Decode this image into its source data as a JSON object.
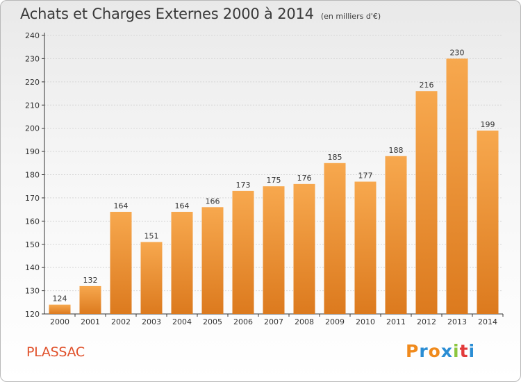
{
  "title": "Achats et Charges Externes 2000 à 2014",
  "unit": "(en milliers d'€)",
  "commune": "PLASSAC",
  "logo": {
    "letters": [
      "P",
      "r",
      "o",
      "x",
      "i",
      "t",
      "i"
    ],
    "colors": [
      "#f08a1c",
      "#2a8dd4",
      "#f08a1c",
      "#2a8dd4",
      "#8cc63e",
      "#e23b3b",
      "#2a8dd4"
    ]
  },
  "colors": {
    "bar_top": "#f7a84e",
    "bar_bottom": "#dc7a1e",
    "title": "#3a3a3a",
    "commune": "#e0502a"
  },
  "chart_data": {
    "type": "bar",
    "categories": [
      "2000",
      "2001",
      "2002",
      "2003",
      "2004",
      "2005",
      "2006",
      "2007",
      "2008",
      "2009",
      "2010",
      "2011",
      "2012",
      "2013",
      "2014"
    ],
    "values": [
      124,
      132,
      164,
      151,
      164,
      166,
      173,
      175,
      176,
      185,
      177,
      188,
      216,
      230,
      199
    ],
    "title": "Achats et Charges Externes 2000 à 2014",
    "xlabel": "",
    "ylabel": "",
    "ylim": [
      120,
      240
    ],
    "yticks": [
      120,
      130,
      140,
      150,
      160,
      170,
      180,
      190,
      200,
      210,
      220,
      230,
      240
    ],
    "grid": true,
    "legend": "none"
  }
}
